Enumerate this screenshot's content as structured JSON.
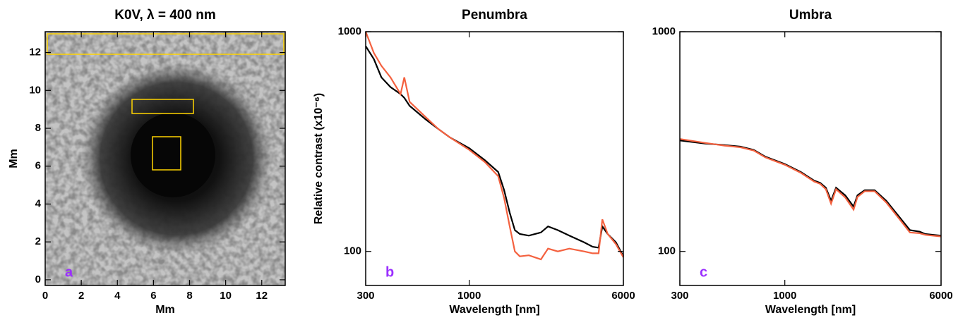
{
  "chart_data": [
    {
      "type": "image",
      "title": "K0V, λ = 400 nm",
      "xlabel": "Mm",
      "ylabel": "Mm",
      "panel_label": "a",
      "xlim": [
        0,
        13.3
      ],
      "ylim": [
        -0.3,
        13.1
      ],
      "xticks": [
        0,
        2,
        4,
        6,
        8,
        10,
        12
      ],
      "yticks": [
        0,
        2,
        4,
        6,
        8,
        10,
        12
      ]
    },
    {
      "type": "line",
      "title": "Penumbra",
      "xlabel": "Wavelength [nm]",
      "ylabel": "Relative contrast (x10⁻⁶)",
      "panel_label": "b",
      "xscale": "log",
      "yscale": "log",
      "xlim": [
        300,
        6000
      ],
      "ylim": [
        70,
        1000
      ],
      "xticks": [
        300,
        1000,
        6000
      ],
      "yticks": [
        100,
        1000
      ],
      "x": [
        300,
        330,
        360,
        400,
        450,
        470,
        500,
        600,
        700,
        800,
        1000,
        1200,
        1400,
        1500,
        1600,
        1700,
        1800,
        2000,
        2300,
        2500,
        2800,
        3200,
        3800,
        4200,
        4500,
        4700,
        5000,
        5500,
        6000
      ],
      "series": [
        {
          "name": "black",
          "color": "#000000",
          "values": [
            860,
            750,
            620,
            560,
            520,
            500,
            460,
            400,
            360,
            330,
            295,
            260,
            230,
            190,
            150,
            125,
            120,
            118,
            122,
            130,
            125,
            118,
            110,
            105,
            104,
            130,
            120,
            110,
            95
          ]
        },
        {
          "name": "red",
          "color": "#f4613f",
          "values": [
            1000,
            800,
            700,
            620,
            520,
            620,
            480,
            410,
            360,
            330,
            290,
            255,
            220,
            175,
            130,
            100,
            95,
            96,
            92,
            103,
            100,
            103,
            100,
            98,
            98,
            140,
            120,
            108,
            94
          ]
        }
      ]
    },
    {
      "type": "line",
      "title": "Umbra",
      "xlabel": "Wavelength [nm]",
      "panel_label": "c",
      "xscale": "log",
      "yscale": "log",
      "xlim": [
        300,
        6000
      ],
      "ylim": [
        70,
        1000
      ],
      "xticks": [
        300,
        1000,
        6000
      ],
      "yticks": [
        100,
        1000
      ],
      "x": [
        300,
        400,
        500,
        600,
        700,
        800,
        1000,
        1200,
        1400,
        1500,
        1600,
        1700,
        1800,
        2000,
        2200,
        2300,
        2500,
        2800,
        3200,
        3800,
        4200,
        4700,
        5000,
        6000
      ],
      "series": [
        {
          "name": "black",
          "color": "#000000",
          "values": [
            320,
            310,
            305,
            300,
            290,
            270,
            250,
            230,
            210,
            205,
            195,
            170,
            195,
            180,
            160,
            180,
            190,
            190,
            170,
            140,
            125,
            123,
            120,
            118
          ]
        },
        {
          "name": "red",
          "color": "#f4613f",
          "values": [
            325,
            312,
            303,
            298,
            288,
            268,
            248,
            228,
            208,
            203,
            192,
            165,
            192,
            176,
            155,
            177,
            188,
            188,
            167,
            137,
            122,
            121,
            119,
            117
          ]
        }
      ]
    }
  ]
}
